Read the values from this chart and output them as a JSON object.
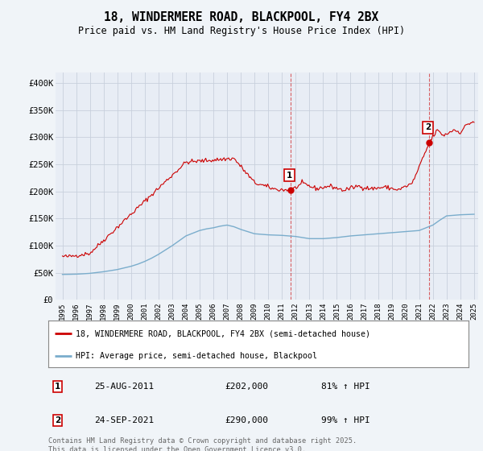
{
  "title": "18, WINDERMERE ROAD, BLACKPOOL, FY4 2BX",
  "subtitle": "Price paid vs. HM Land Registry's House Price Index (HPI)",
  "ylim": [
    0,
    420000
  ],
  "yticks": [
    0,
    50000,
    100000,
    150000,
    200000,
    250000,
    300000,
    350000,
    400000
  ],
  "ytick_labels": [
    "£0",
    "£50K",
    "£100K",
    "£150K",
    "£200K",
    "£250K",
    "£300K",
    "£350K",
    "£400K"
  ],
  "background_color": "#f0f4f8",
  "plot_background": "#e8edf5",
  "grid_color": "#c8d0dc",
  "line1_color": "#cc0000",
  "line2_color": "#7aadcc",
  "annotation1": {
    "label": "1",
    "year": 2011.65,
    "value": 202000,
    "date": "25-AUG-2011",
    "price": "£202,000",
    "pct": "81% ↑ HPI"
  },
  "annotation2": {
    "label": "2",
    "year": 2021.73,
    "value": 290000,
    "date": "24-SEP-2021",
    "price": "£290,000",
    "pct": "99% ↑ HPI"
  },
  "legend_line1": "18, WINDERMERE ROAD, BLACKPOOL, FY4 2BX (semi-detached house)",
  "legend_line2": "HPI: Average price, semi-detached house, Blackpool",
  "footer": "Contains HM Land Registry data © Crown copyright and database right 2025.\nThis data is licensed under the Open Government Licence v3.0.",
  "xstart": 1995,
  "xend": 2025
}
